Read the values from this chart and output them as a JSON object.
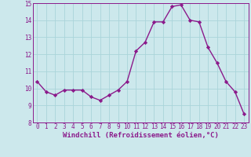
{
  "x": [
    0,
    1,
    2,
    3,
    4,
    5,
    6,
    7,
    8,
    9,
    10,
    11,
    12,
    13,
    14,
    15,
    16,
    17,
    18,
    19,
    20,
    21,
    22,
    23
  ],
  "y": [
    10.4,
    9.8,
    9.6,
    9.9,
    9.9,
    9.9,
    9.5,
    9.3,
    9.6,
    9.9,
    10.4,
    12.2,
    12.7,
    13.9,
    13.9,
    14.8,
    14.9,
    14.0,
    13.9,
    12.4,
    11.5,
    10.4,
    9.8,
    8.5
  ],
  "line_color": "#8b1a8b",
  "marker": "D",
  "marker_size": 2.2,
  "bg_color": "#cce8ec",
  "grid_color": "#aad4da",
  "xlabel": "Windchill (Refroidissement éolien,°C)",
  "xlabel_color": "#8b1a8b",
  "tick_color": "#8b1a8b",
  "spine_color": "#8b1a8b",
  "ylim": [
    8,
    15
  ],
  "xlim": [
    -0.5,
    23.5
  ],
  "yticks": [
    8,
    9,
    10,
    11,
    12,
    13,
    14,
    15
  ],
  "xticks": [
    0,
    1,
    2,
    3,
    4,
    5,
    6,
    7,
    8,
    9,
    10,
    11,
    12,
    13,
    14,
    15,
    16,
    17,
    18,
    19,
    20,
    21,
    22,
    23
  ],
  "tick_fontsize": 5.5,
  "xlabel_fontsize": 6.5,
  "linewidth": 1.0
}
